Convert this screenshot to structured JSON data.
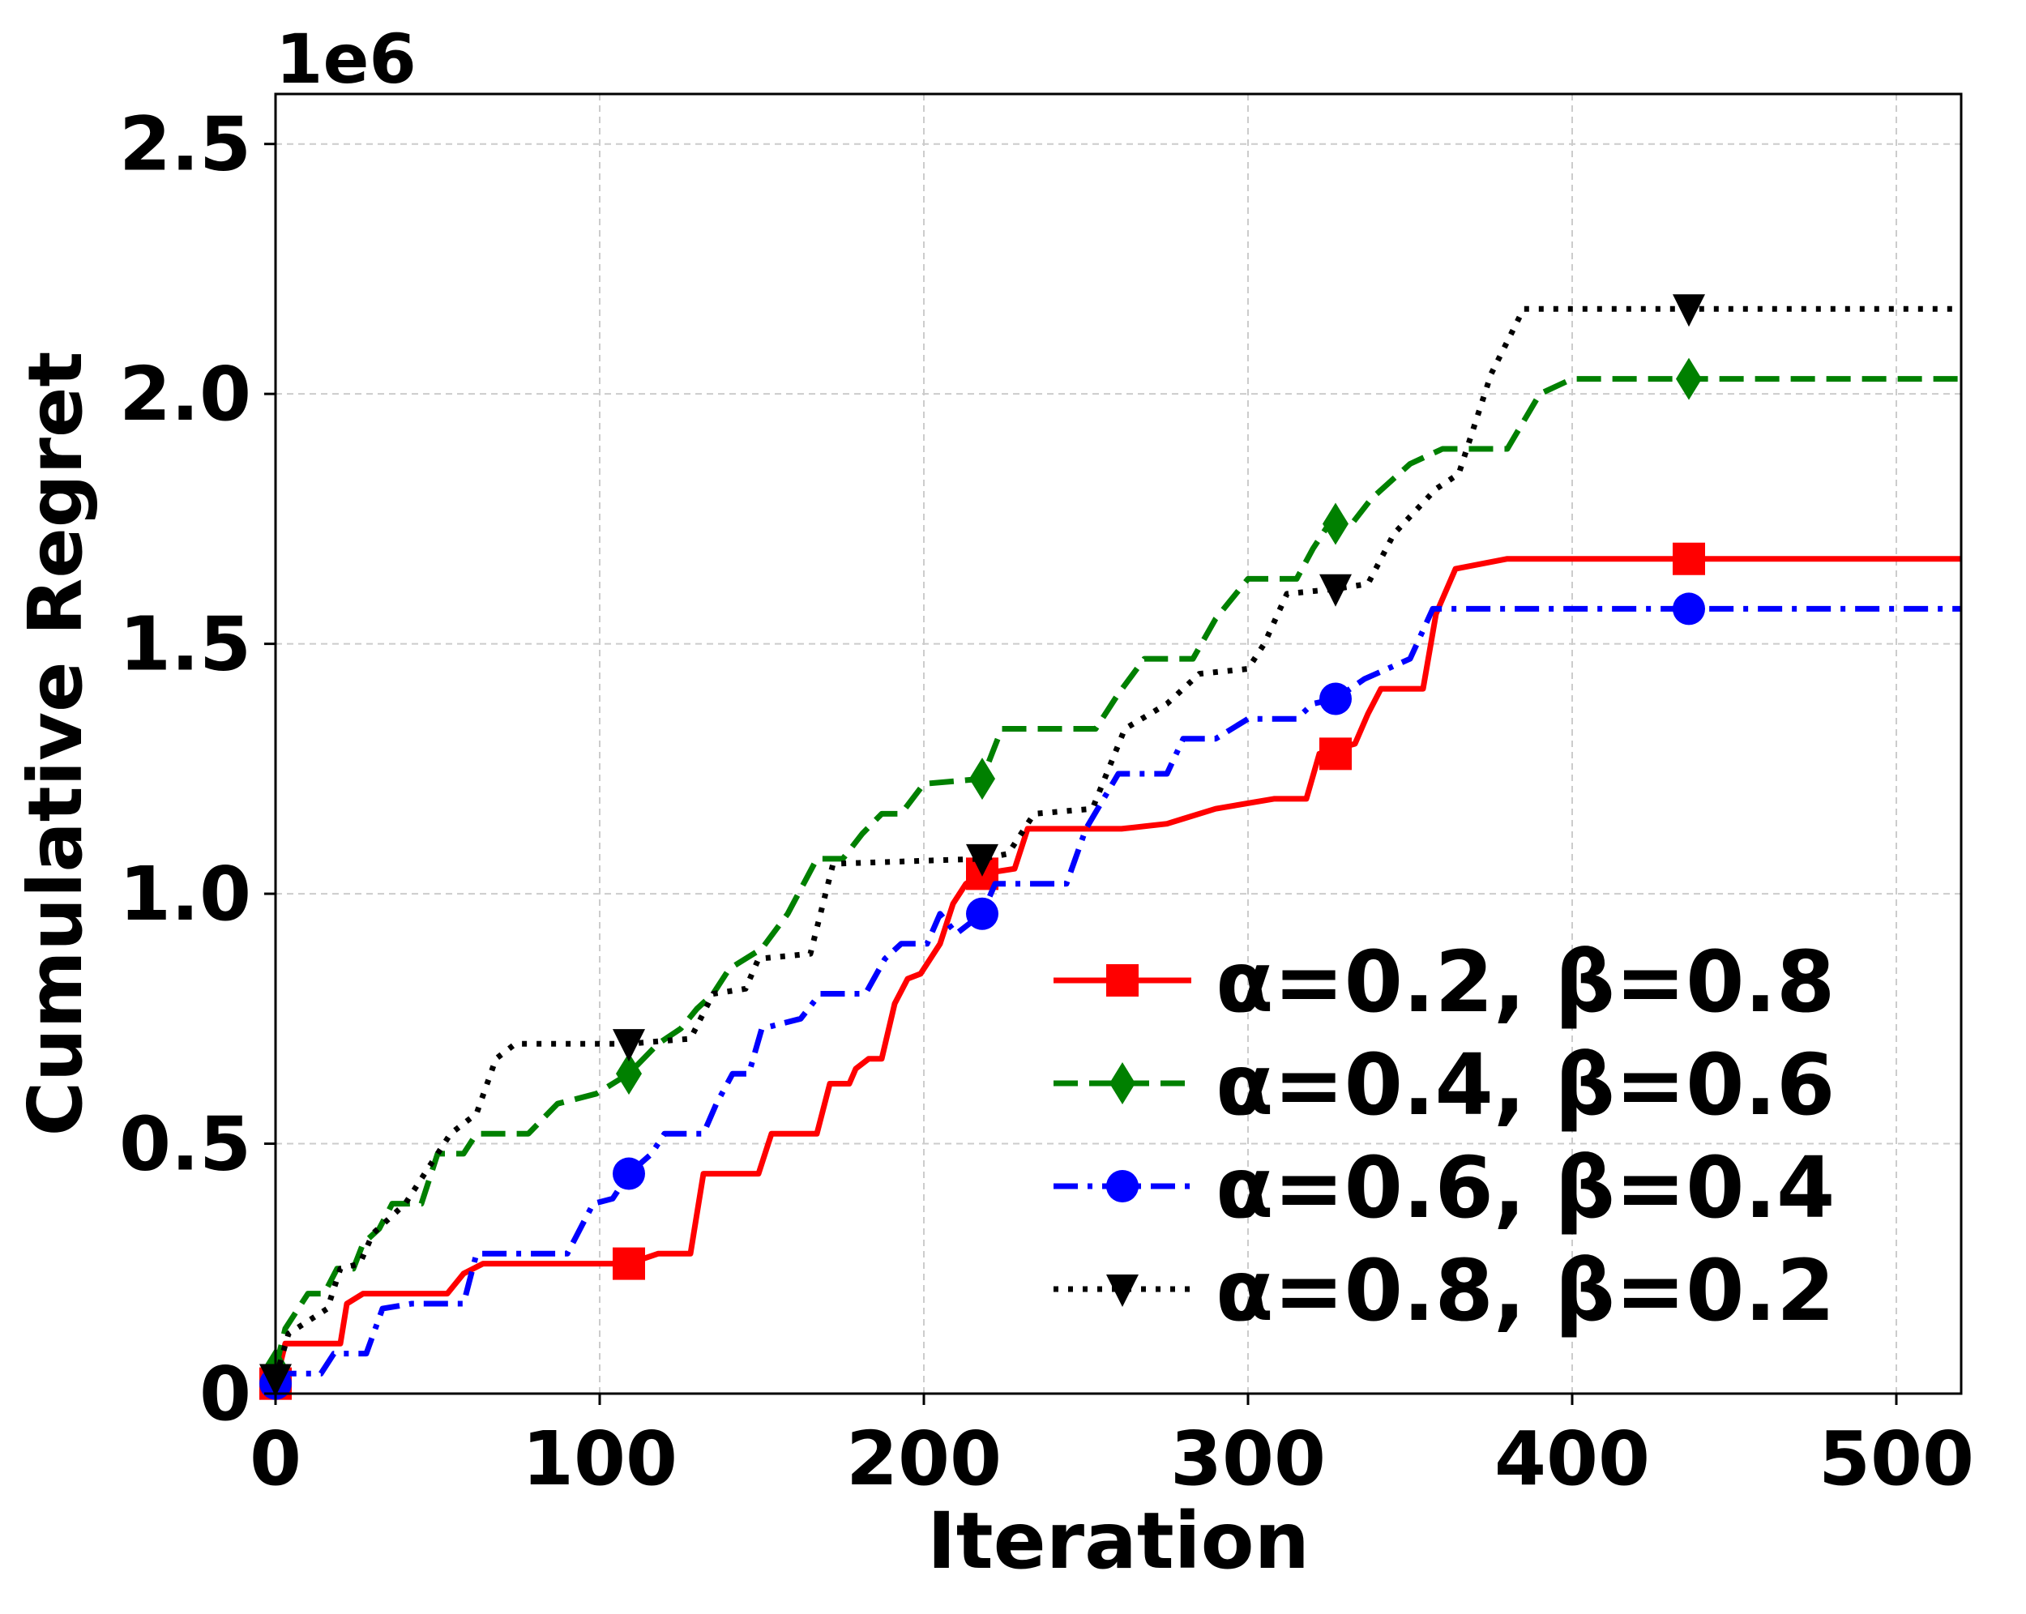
{
  "chart_data": {
    "type": "line",
    "title": "",
    "xlabel": "Iteration",
    "ylabel": "Cumulative Regret",
    "offset_label": "1e6",
    "xlim": [
      0,
      520
    ],
    "ylim": [
      0,
      2.6
    ],
    "x_ticks": [
      0,
      100,
      200,
      300,
      400,
      500
    ],
    "x_tick_labels": [
      "0",
      "100",
      "200",
      "300",
      "400",
      "500"
    ],
    "y_ticks": [
      0,
      0.5,
      1.0,
      1.5,
      2.0,
      2.5
    ],
    "y_tick_labels": [
      "0",
      "0.5",
      "1.0",
      "1.5",
      "2.0",
      "2.5"
    ],
    "grid": true,
    "legend_position": "lower-right",
    "series": [
      {
        "name": "α=0.2, β=0.8",
        "color": "#ff0000",
        "dash": "solid",
        "marker": "square",
        "marker_x": [
          0,
          109,
          218,
          327,
          436
        ],
        "points": [
          [
            0,
            0.02
          ],
          [
            3,
            0.1
          ],
          [
            20,
            0.1
          ],
          [
            22,
            0.18
          ],
          [
            27,
            0.2
          ],
          [
            53,
            0.2
          ],
          [
            58,
            0.24
          ],
          [
            64,
            0.26
          ],
          [
            109,
            0.26
          ],
          [
            118,
            0.28
          ],
          [
            128,
            0.28
          ],
          [
            132,
            0.44
          ],
          [
            149,
            0.44
          ],
          [
            153,
            0.52
          ],
          [
            167,
            0.52
          ],
          [
            171,
            0.62
          ],
          [
            177,
            0.62
          ],
          [
            179,
            0.65
          ],
          [
            183,
            0.67
          ],
          [
            187,
            0.67
          ],
          [
            191,
            0.78
          ],
          [
            195,
            0.83
          ],
          [
            199,
            0.84
          ],
          [
            205,
            0.9
          ],
          [
            209,
            0.98
          ],
          [
            213,
            1.02
          ],
          [
            218,
            1.04
          ],
          [
            228,
            1.05
          ],
          [
            232,
            1.13
          ],
          [
            261,
            1.13
          ],
          [
            275,
            1.14
          ],
          [
            280,
            1.15
          ],
          [
            290,
            1.17
          ],
          [
            308,
            1.19
          ],
          [
            318,
            1.19
          ],
          [
            322,
            1.28
          ],
          [
            333,
            1.3
          ],
          [
            337,
            1.36
          ],
          [
            341,
            1.41
          ],
          [
            354,
            1.41
          ],
          [
            358,
            1.56
          ],
          [
            364,
            1.65
          ],
          [
            380,
            1.67
          ],
          [
            520,
            1.67
          ]
        ]
      },
      {
        "name": "α=0.4, β=0.6",
        "color": "#008000",
        "dash": "dashed",
        "marker": "diamond",
        "marker_x": [
          0,
          109,
          218,
          327,
          436
        ],
        "points": [
          [
            0,
            0.05
          ],
          [
            3,
            0.13
          ],
          [
            10,
            0.2
          ],
          [
            15,
            0.2
          ],
          [
            19,
            0.25
          ],
          [
            24,
            0.25
          ],
          [
            27,
            0.3
          ],
          [
            32,
            0.33
          ],
          [
            36,
            0.38
          ],
          [
            45,
            0.38
          ],
          [
            50,
            0.48
          ],
          [
            58,
            0.48
          ],
          [
            62,
            0.52
          ],
          [
            78,
            0.52
          ],
          [
            87,
            0.58
          ],
          [
            99,
            0.6
          ],
          [
            109,
            0.64
          ],
          [
            118,
            0.7
          ],
          [
            125,
            0.73
          ],
          [
            130,
            0.77
          ],
          [
            135,
            0.8
          ],
          [
            140,
            0.85
          ],
          [
            150,
            0.89
          ],
          [
            158,
            0.96
          ],
          [
            167,
            1.07
          ],
          [
            175,
            1.07
          ],
          [
            181,
            1.12
          ],
          [
            187,
            1.16
          ],
          [
            193,
            1.16
          ],
          [
            200,
            1.22
          ],
          [
            218,
            1.23
          ],
          [
            224,
            1.33
          ],
          [
            253,
            1.33
          ],
          [
            260,
            1.4
          ],
          [
            268,
            1.47
          ],
          [
            283,
            1.47
          ],
          [
            290,
            1.55
          ],
          [
            300,
            1.63
          ],
          [
            315,
            1.63
          ],
          [
            320,
            1.69
          ],
          [
            325,
            1.74
          ],
          [
            332,
            1.74
          ],
          [
            338,
            1.79
          ],
          [
            350,
            1.86
          ],
          [
            360,
            1.89
          ],
          [
            380,
            1.89
          ],
          [
            390,
            2.0
          ],
          [
            400,
            2.03
          ],
          [
            520,
            2.03
          ]
        ]
      },
      {
        "name": "α=0.6, β=0.4",
        "color": "#0000ff",
        "dash": "dashdot",
        "marker": "circle",
        "marker_x": [
          0,
          109,
          218,
          327,
          436
        ],
        "points": [
          [
            0,
            0.02
          ],
          [
            4,
            0.04
          ],
          [
            14,
            0.04
          ],
          [
            18,
            0.08
          ],
          [
            28,
            0.08
          ],
          [
            33,
            0.17
          ],
          [
            42,
            0.18
          ],
          [
            58,
            0.18
          ],
          [
            62,
            0.28
          ],
          [
            90,
            0.28
          ],
          [
            98,
            0.38
          ],
          [
            104,
            0.39
          ],
          [
            109,
            0.44
          ],
          [
            116,
            0.48
          ],
          [
            120,
            0.52
          ],
          [
            132,
            0.52
          ],
          [
            136,
            0.58
          ],
          [
            141,
            0.64
          ],
          [
            146,
            0.64
          ],
          [
            150,
            0.73
          ],
          [
            162,
            0.75
          ],
          [
            168,
            0.8
          ],
          [
            182,
            0.8
          ],
          [
            188,
            0.87
          ],
          [
            193,
            0.9
          ],
          [
            201,
            0.9
          ],
          [
            205,
            0.96
          ],
          [
            210,
            0.92
          ],
          [
            218,
            0.96
          ],
          [
            222,
            1.02
          ],
          [
            244,
            1.02
          ],
          [
            250,
            1.13
          ],
          [
            260,
            1.24
          ],
          [
            275,
            1.24
          ],
          [
            280,
            1.31
          ],
          [
            290,
            1.31
          ],
          [
            300,
            1.35
          ],
          [
            315,
            1.35
          ],
          [
            320,
            1.38
          ],
          [
            327,
            1.39
          ],
          [
            336,
            1.43
          ],
          [
            350,
            1.47
          ],
          [
            357,
            1.57
          ],
          [
            520,
            1.57
          ]
        ]
      },
      {
        "name": "α=0.8, β=0.2",
        "color": "#000000",
        "dash": "dotted",
        "marker": "triangle-down",
        "marker_x": [
          0,
          109,
          218,
          327,
          436
        ],
        "points": [
          [
            0,
            0.03
          ],
          [
            4,
            0.12
          ],
          [
            16,
            0.17
          ],
          [
            20,
            0.25
          ],
          [
            26,
            0.26
          ],
          [
            30,
            0.32
          ],
          [
            40,
            0.38
          ],
          [
            54,
            0.52
          ],
          [
            62,
            0.56
          ],
          [
            68,
            0.67
          ],
          [
            74,
            0.7
          ],
          [
            109,
            0.7
          ],
          [
            128,
            0.71
          ],
          [
            135,
            0.8
          ],
          [
            145,
            0.81
          ],
          [
            149,
            0.87
          ],
          [
            165,
            0.88
          ],
          [
            172,
            1.06
          ],
          [
            218,
            1.07
          ],
          [
            226,
            1.08
          ],
          [
            234,
            1.16
          ],
          [
            252,
            1.17
          ],
          [
            262,
            1.33
          ],
          [
            275,
            1.38
          ],
          [
            285,
            1.44
          ],
          [
            300,
            1.45
          ],
          [
            305,
            1.5
          ],
          [
            312,
            1.6
          ],
          [
            327,
            1.61
          ],
          [
            337,
            1.62
          ],
          [
            345,
            1.72
          ],
          [
            358,
            1.81
          ],
          [
            365,
            1.84
          ],
          [
            375,
            2.04
          ],
          [
            385,
            2.17
          ],
          [
            520,
            2.17
          ]
        ]
      }
    ]
  }
}
